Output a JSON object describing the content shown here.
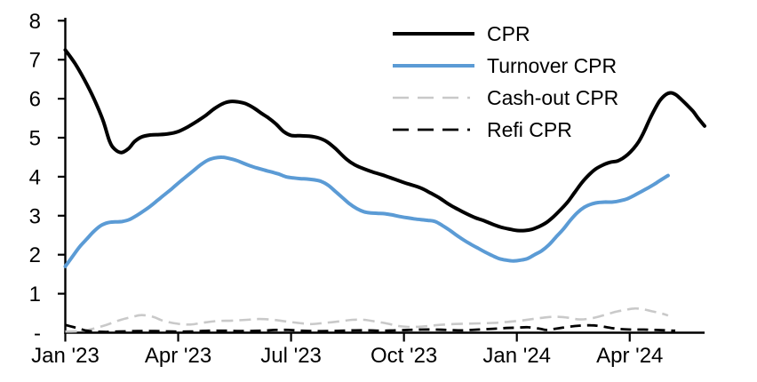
{
  "chart_data": {
    "type": "line",
    "title": "",
    "xlabel": "",
    "ylabel": "",
    "x_unit_note": "x = months since Jan 2023 (fractional), weekly-resolution curves",
    "xlim": [
      0,
      17
    ],
    "ylim": [
      0,
      8
    ],
    "grid": false,
    "legend_position": "top-right-inside",
    "axis_color": "#000000",
    "x_ticks": [
      {
        "m": 0,
        "label": "Jan '23"
      },
      {
        "m": 3,
        "label": "Apr '23"
      },
      {
        "m": 6,
        "label": "Jul '23"
      },
      {
        "m": 9,
        "label": "Oct '23"
      },
      {
        "m": 12,
        "label": "Jan '24"
      },
      {
        "m": 15,
        "label": "Apr '24"
      }
    ],
    "y_ticks": [
      {
        "v": 8,
        "label": "8"
      },
      {
        "v": 7,
        "label": "7"
      },
      {
        "v": 6,
        "label": "6"
      },
      {
        "v": 5,
        "label": "5"
      },
      {
        "v": 4,
        "label": "4"
      },
      {
        "v": 3,
        "label": "3"
      },
      {
        "v": 2,
        "label": "2"
      },
      {
        "v": 1,
        "label": "1"
      },
      {
        "v": 0,
        "label": "-"
      }
    ],
    "series": [
      {
        "name": "CPR",
        "color": "#000000",
        "style": "solid",
        "width": 4,
        "points": [
          [
            0,
            7.25
          ],
          [
            0.26,
            6.9
          ],
          [
            0.5,
            6.5
          ],
          [
            0.76,
            6.0
          ],
          [
            1.0,
            5.45
          ],
          [
            1.18,
            4.9
          ],
          [
            1.32,
            4.7
          ],
          [
            1.49,
            4.62
          ],
          [
            1.68,
            4.72
          ],
          [
            1.84,
            4.9
          ],
          [
            2.03,
            5.02
          ],
          [
            2.27,
            5.07
          ],
          [
            2.5,
            5.08
          ],
          [
            2.74,
            5.1
          ],
          [
            2.98,
            5.15
          ],
          [
            3.26,
            5.28
          ],
          [
            3.5,
            5.42
          ],
          [
            3.73,
            5.57
          ],
          [
            3.97,
            5.75
          ],
          [
            4.2,
            5.88
          ],
          [
            4.39,
            5.93
          ],
          [
            4.58,
            5.92
          ],
          [
            4.8,
            5.87
          ],
          [
            5.03,
            5.75
          ],
          [
            5.22,
            5.62
          ],
          [
            5.41,
            5.5
          ],
          [
            5.6,
            5.35
          ],
          [
            5.81,
            5.15
          ],
          [
            6.0,
            5.06
          ],
          [
            6.24,
            5.05
          ],
          [
            6.47,
            5.04
          ],
          [
            6.71,
            5.0
          ],
          [
            6.95,
            4.9
          ],
          [
            7.18,
            4.72
          ],
          [
            7.47,
            4.45
          ],
          [
            7.7,
            4.3
          ],
          [
            7.94,
            4.2
          ],
          [
            8.17,
            4.12
          ],
          [
            8.41,
            4.05
          ],
          [
            8.65,
            3.97
          ],
          [
            9.0,
            3.85
          ],
          [
            9.24,
            3.78
          ],
          [
            9.47,
            3.7
          ],
          [
            9.71,
            3.58
          ],
          [
            9.95,
            3.45
          ],
          [
            10.18,
            3.3
          ],
          [
            10.42,
            3.17
          ],
          [
            10.66,
            3.05
          ],
          [
            10.89,
            2.95
          ],
          [
            11.13,
            2.87
          ],
          [
            11.36,
            2.78
          ],
          [
            11.6,
            2.7
          ],
          [
            11.84,
            2.65
          ],
          [
            12.02,
            2.62
          ],
          [
            12.21,
            2.62
          ],
          [
            12.4,
            2.65
          ],
          [
            12.59,
            2.72
          ],
          [
            12.78,
            2.82
          ],
          [
            12.97,
            2.97
          ],
          [
            13.16,
            3.15
          ],
          [
            13.35,
            3.35
          ],
          [
            13.54,
            3.6
          ],
          [
            13.73,
            3.85
          ],
          [
            13.92,
            4.05
          ],
          [
            14.1,
            4.2
          ],
          [
            14.29,
            4.3
          ],
          [
            14.48,
            4.37
          ],
          [
            14.67,
            4.4
          ],
          [
            14.81,
            4.47
          ],
          [
            14.95,
            4.57
          ],
          [
            15.1,
            4.72
          ],
          [
            15.24,
            4.9
          ],
          [
            15.38,
            5.15
          ],
          [
            15.52,
            5.45
          ],
          [
            15.66,
            5.72
          ],
          [
            15.8,
            5.95
          ],
          [
            15.95,
            6.1
          ],
          [
            16.09,
            6.15
          ],
          [
            16.23,
            6.1
          ],
          [
            16.37,
            5.98
          ],
          [
            16.51,
            5.85
          ],
          [
            16.68,
            5.68
          ],
          [
            16.82,
            5.5
          ],
          [
            16.99,
            5.3
          ]
        ]
      },
      {
        "name": "Turnover CPR",
        "color": "#5B9BD5",
        "style": "solid",
        "width": 4,
        "points": [
          [
            0,
            1.7
          ],
          [
            0.19,
            1.95
          ],
          [
            0.38,
            2.2
          ],
          [
            0.57,
            2.4
          ],
          [
            0.76,
            2.6
          ],
          [
            0.95,
            2.75
          ],
          [
            1.13,
            2.82
          ],
          [
            1.32,
            2.84
          ],
          [
            1.51,
            2.85
          ],
          [
            1.7,
            2.9
          ],
          [
            1.89,
            3.0
          ],
          [
            2.08,
            3.12
          ],
          [
            2.27,
            3.25
          ],
          [
            2.46,
            3.4
          ],
          [
            2.65,
            3.55
          ],
          [
            2.84,
            3.7
          ],
          [
            3.02,
            3.85
          ],
          [
            3.21,
            4.0
          ],
          [
            3.4,
            4.15
          ],
          [
            3.59,
            4.3
          ],
          [
            3.78,
            4.42
          ],
          [
            3.97,
            4.48
          ],
          [
            4.16,
            4.5
          ],
          [
            4.35,
            4.47
          ],
          [
            4.54,
            4.42
          ],
          [
            4.72,
            4.35
          ],
          [
            4.91,
            4.28
          ],
          [
            5.1,
            4.22
          ],
          [
            5.29,
            4.17
          ],
          [
            5.48,
            4.12
          ],
          [
            5.67,
            4.07
          ],
          [
            5.86,
            4.0
          ],
          [
            6.05,
            3.97
          ],
          [
            6.24,
            3.95
          ],
          [
            6.43,
            3.94
          ],
          [
            6.61,
            3.92
          ],
          [
            6.8,
            3.88
          ],
          [
            6.99,
            3.78
          ],
          [
            7.18,
            3.62
          ],
          [
            7.37,
            3.46
          ],
          [
            7.56,
            3.3
          ],
          [
            7.75,
            3.18
          ],
          [
            7.94,
            3.1
          ],
          [
            8.13,
            3.07
          ],
          [
            8.32,
            3.06
          ],
          [
            8.5,
            3.05
          ],
          [
            8.69,
            3.02
          ],
          [
            8.88,
            2.98
          ],
          [
            9.07,
            2.95
          ],
          [
            9.26,
            2.92
          ],
          [
            9.45,
            2.9
          ],
          [
            9.64,
            2.88
          ],
          [
            9.83,
            2.85
          ],
          [
            10.02,
            2.75
          ],
          [
            10.21,
            2.63
          ],
          [
            10.4,
            2.5
          ],
          [
            10.58,
            2.38
          ],
          [
            10.77,
            2.27
          ],
          [
            10.96,
            2.17
          ],
          [
            11.15,
            2.07
          ],
          [
            11.34,
            1.98
          ],
          [
            11.53,
            1.9
          ],
          [
            11.72,
            1.86
          ],
          [
            11.91,
            1.84
          ],
          [
            12.1,
            1.86
          ],
          [
            12.28,
            1.9
          ],
          [
            12.47,
            2.0
          ],
          [
            12.66,
            2.1
          ],
          [
            12.85,
            2.25
          ],
          [
            13.04,
            2.45
          ],
          [
            13.23,
            2.65
          ],
          [
            13.42,
            2.88
          ],
          [
            13.61,
            3.08
          ],
          [
            13.8,
            3.22
          ],
          [
            13.99,
            3.3
          ],
          [
            14.18,
            3.34
          ],
          [
            14.36,
            3.35
          ],
          [
            14.55,
            3.35
          ],
          [
            14.74,
            3.38
          ],
          [
            14.93,
            3.43
          ],
          [
            15.12,
            3.52
          ],
          [
            15.31,
            3.62
          ],
          [
            15.5,
            3.72
          ],
          [
            15.69,
            3.83
          ],
          [
            15.85,
            3.93
          ],
          [
            16.02,
            4.03
          ]
        ]
      },
      {
        "name": "Cash-out CPR",
        "color": "#C9C9C9",
        "style": "dashed",
        "width": 2.6,
        "points": [
          [
            0,
            0.03
          ],
          [
            0.38,
            0.04
          ],
          [
            0.73,
            0.1
          ],
          [
            1.09,
            0.2
          ],
          [
            1.44,
            0.32
          ],
          [
            1.8,
            0.41
          ],
          [
            2.03,
            0.45
          ],
          [
            2.32,
            0.41
          ],
          [
            2.62,
            0.3
          ],
          [
            2.98,
            0.23
          ],
          [
            3.33,
            0.21
          ],
          [
            3.69,
            0.26
          ],
          [
            4.04,
            0.3
          ],
          [
            4.44,
            0.31
          ],
          [
            4.82,
            0.33
          ],
          [
            5.15,
            0.35
          ],
          [
            5.53,
            0.33
          ],
          [
            5.86,
            0.29
          ],
          [
            6.19,
            0.25
          ],
          [
            6.52,
            0.22
          ],
          [
            6.88,
            0.25
          ],
          [
            7.28,
            0.29
          ],
          [
            7.63,
            0.33
          ],
          [
            7.94,
            0.33
          ],
          [
            8.22,
            0.29
          ],
          [
            8.53,
            0.24
          ],
          [
            8.81,
            0.18
          ],
          [
            9.07,
            0.15
          ],
          [
            9.36,
            0.15
          ],
          [
            9.64,
            0.17
          ],
          [
            9.95,
            0.2
          ],
          [
            10.3,
            0.22
          ],
          [
            10.66,
            0.23
          ],
          [
            11.01,
            0.24
          ],
          [
            11.37,
            0.25
          ],
          [
            11.67,
            0.27
          ],
          [
            12.01,
            0.3
          ],
          [
            12.34,
            0.34
          ],
          [
            12.66,
            0.38
          ],
          [
            12.99,
            0.41
          ],
          [
            13.32,
            0.39
          ],
          [
            13.66,
            0.34
          ],
          [
            13.99,
            0.37
          ],
          [
            14.32,
            0.45
          ],
          [
            14.6,
            0.53
          ],
          [
            14.86,
            0.58
          ],
          [
            15.12,
            0.62
          ],
          [
            15.36,
            0.6
          ],
          [
            15.59,
            0.55
          ],
          [
            15.83,
            0.5
          ],
          [
            16.02,
            0.44
          ]
        ]
      },
      {
        "name": "Refi CPR",
        "color": "#000000",
        "style": "dashed",
        "width": 2.8,
        "points": [
          [
            0,
            0.2
          ],
          [
            0.19,
            0.15
          ],
          [
            0.38,
            0.1
          ],
          [
            0.57,
            0.05
          ],
          [
            0.8,
            0.03
          ],
          [
            1.09,
            0.02
          ],
          [
            1.44,
            0.03
          ],
          [
            1.91,
            0.04
          ],
          [
            2.39,
            0.04
          ],
          [
            2.86,
            0.03
          ],
          [
            3.33,
            0.03
          ],
          [
            3.8,
            0.05
          ],
          [
            4.28,
            0.05
          ],
          [
            4.75,
            0.04
          ],
          [
            5.22,
            0.05
          ],
          [
            5.58,
            0.07
          ],
          [
            5.93,
            0.07
          ],
          [
            6.28,
            0.05
          ],
          [
            6.64,
            0.04
          ],
          [
            6.99,
            0.04
          ],
          [
            7.35,
            0.05
          ],
          [
            7.7,
            0.06
          ],
          [
            8.06,
            0.06
          ],
          [
            8.41,
            0.05
          ],
          [
            8.77,
            0.06
          ],
          [
            9.12,
            0.07
          ],
          [
            9.47,
            0.08
          ],
          [
            9.83,
            0.08
          ],
          [
            10.18,
            0.07
          ],
          [
            10.54,
            0.06
          ],
          [
            10.96,
            0.08
          ],
          [
            11.37,
            0.1
          ],
          [
            11.72,
            0.12
          ],
          [
            12.03,
            0.13
          ],
          [
            12.31,
            0.14
          ],
          [
            12.62,
            0.1
          ],
          [
            12.78,
            0.07
          ],
          [
            13.02,
            0.1
          ],
          [
            13.37,
            0.15
          ],
          [
            13.66,
            0.18
          ],
          [
            13.96,
            0.19
          ],
          [
            14.2,
            0.17
          ],
          [
            14.51,
            0.12
          ],
          [
            14.79,
            0.09
          ],
          [
            15.07,
            0.08
          ],
          [
            15.38,
            0.08
          ],
          [
            15.69,
            0.07
          ],
          [
            15.97,
            0.06
          ],
          [
            16.21,
            0.05
          ]
        ]
      }
    ]
  }
}
